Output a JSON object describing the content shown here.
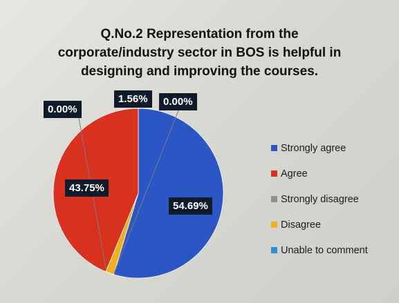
{
  "chart_data": {
    "type": "pie",
    "title_lines": [
      "Q.No.2 Representation from the",
      "corporate/industry sector in BOS is helpful in",
      "designing and improving the courses."
    ],
    "slices": [
      {
        "name": "Strongly agree",
        "value": 54.69,
        "label": "54.69%",
        "color": "#2a56c6"
      },
      {
        "name": "Agree",
        "value": 43.75,
        "label": "43.75%",
        "color": "#d9331f"
      },
      {
        "name": "Strongly disagree",
        "value": 0.0,
        "label": "0.00%",
        "color": "#8c8f96"
      },
      {
        "name": "Disagree",
        "value": 1.56,
        "label": "1.56%",
        "color": "#efb21c"
      },
      {
        "name": "Unable to comment",
        "value": 0.0,
        "label": "0.00%",
        "color": "#2e8fd6"
      }
    ],
    "legend_position": "right"
  }
}
